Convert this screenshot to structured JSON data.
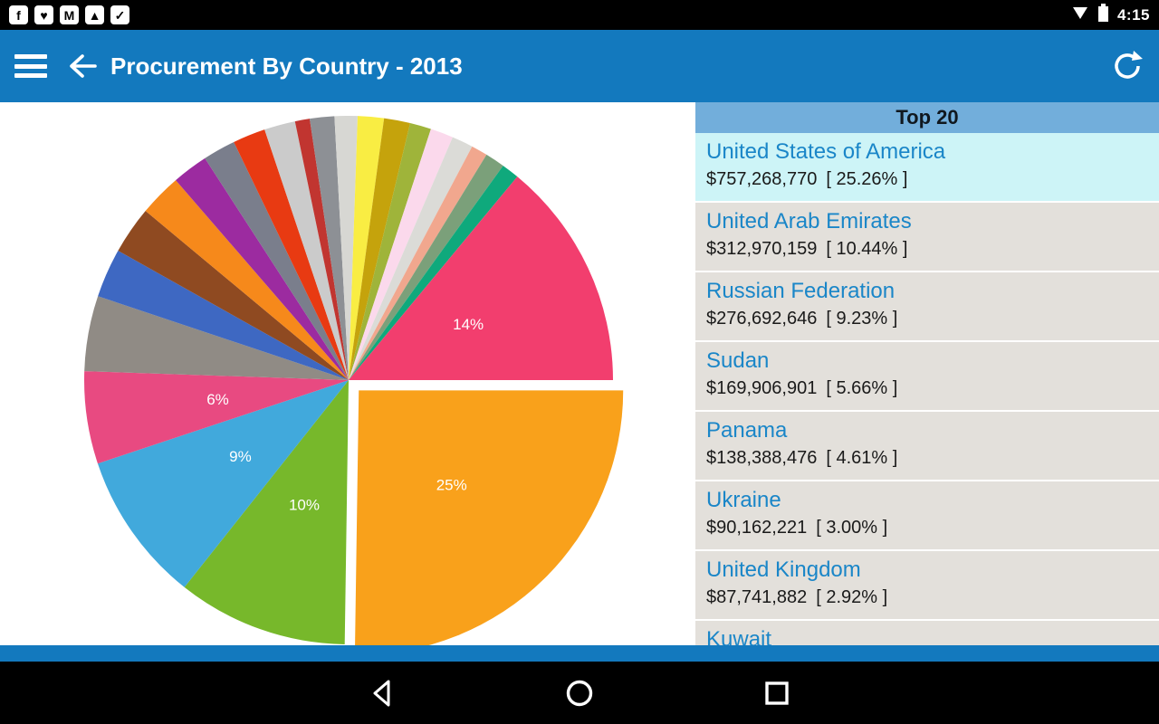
{
  "status_bar": {
    "time": "4:15",
    "notification_icons": [
      {
        "name": "facebook-icon",
        "glyph": "f"
      },
      {
        "name": "heart-icon",
        "glyph": "♥"
      },
      {
        "name": "mail-icon",
        "glyph": "M"
      },
      {
        "name": "gallery-icon",
        "glyph": "▲"
      },
      {
        "name": "download-icon",
        "glyph": "✓"
      }
    ],
    "system_icons": [
      "wifi-icon",
      "battery-icon"
    ]
  },
  "app_bar": {
    "title": "Procurement By Country - 2013",
    "icons": [
      "hamburger-menu-icon",
      "back-arrow-icon",
      "refresh-icon"
    ]
  },
  "list_panel": {
    "header": "Top 20",
    "rows": [
      {
        "country": "United States of America",
        "amount": "$757,268,770",
        "percent": "[ 25.26% ]"
      },
      {
        "country": "United Arab Emirates",
        "amount": "$312,970,159",
        "percent": "[ 10.44% ]"
      },
      {
        "country": "Russian Federation",
        "amount": "$276,692,646",
        "percent": "[ 9.23% ]"
      },
      {
        "country": "Sudan",
        "amount": "$169,906,901",
        "percent": "[ 5.66% ]"
      },
      {
        "country": "Panama",
        "amount": "$138,388,476",
        "percent": "[ 4.61% ]"
      },
      {
        "country": "Ukraine",
        "amount": "$90,162,221",
        "percent": "[ 3.00% ]"
      },
      {
        "country": "United Kingdom",
        "amount": "$87,741,882",
        "percent": "[ 2.92% ]"
      },
      {
        "country": "Kuwait",
        "amount": "",
        "percent": ""
      }
    ]
  },
  "chart_data": {
    "type": "pie",
    "title": "Procurement By Country - 2013",
    "direction": "clockwise",
    "start_angle_deg": 0,
    "legend_position": "none",
    "labels_shown": [
      "25%",
      "14%",
      "10%",
      "9%",
      "6%"
    ],
    "slices": [
      {
        "name": "United States of America",
        "pct": 25.26,
        "color": "#F9A11B",
        "label": "25%",
        "exploded": true
      },
      {
        "name": "United Arab Emirates",
        "pct": 10.44,
        "color": "#77B82B",
        "label": "10%"
      },
      {
        "name": "Russian Federation",
        "pct": 9.23,
        "color": "#41A9DC",
        "label": "9%"
      },
      {
        "name": "Sudan",
        "pct": 5.66,
        "color": "#E84A81",
        "label": "6%"
      },
      {
        "name": "Panama",
        "pct": 4.61,
        "color": "#908B85"
      },
      {
        "name": "Ukraine",
        "pct": 3.0,
        "color": "#3E68C2"
      },
      {
        "name": "United Kingdom",
        "pct": 2.92,
        "color": "#8F4A21"
      },
      {
        "name": "Kuwait",
        "pct": 2.6,
        "color": "#F6891B"
      },
      {
        "name": "",
        "pct": 2.2,
        "color": "#9C2BA0"
      },
      {
        "name": "",
        "pct": 2.0,
        "color": "#7A7E8C"
      },
      {
        "name": "",
        "pct": 2.0,
        "color": "#E83A12"
      },
      {
        "name": "",
        "pct": 1.9,
        "color": "#CBCBCB"
      },
      {
        "name": "",
        "pct": 0.9,
        "color": "#C13530"
      },
      {
        "name": "",
        "pct": 1.5,
        "color": "#8D9095"
      },
      {
        "name": "",
        "pct": 1.4,
        "color": "#D7D7D3"
      },
      {
        "name": "",
        "pct": 1.6,
        "color": "#F9ED43"
      },
      {
        "name": "",
        "pct": 1.6,
        "color": "#C5A30C"
      },
      {
        "name": "",
        "pct": 1.3,
        "color": "#9FB43A"
      },
      {
        "name": "",
        "pct": 1.4,
        "color": "#FBD9EC"
      },
      {
        "name": "",
        "pct": 1.3,
        "color": "#DBDBD7"
      },
      {
        "name": "",
        "pct": 1.0,
        "color": "#F1A78E"
      },
      {
        "name": "",
        "pct": 1.2,
        "color": "#7BA07A"
      },
      {
        "name": "",
        "pct": 1.08,
        "color": "#0FA97C"
      },
      {
        "name": "",
        "pct": 14.0,
        "color": "#F23E6E",
        "label": "14%"
      }
    ]
  },
  "colors": {
    "app_bar": "#1379BE",
    "list_header_bg": "#72AEDB",
    "row_bg": "#E3E0DB",
    "row_highlight_bg": "#CDF4F7",
    "country_text": "#1A86C8"
  },
  "nav_bar": {
    "icons": [
      "back-icon",
      "home-icon",
      "recents-icon"
    ]
  }
}
